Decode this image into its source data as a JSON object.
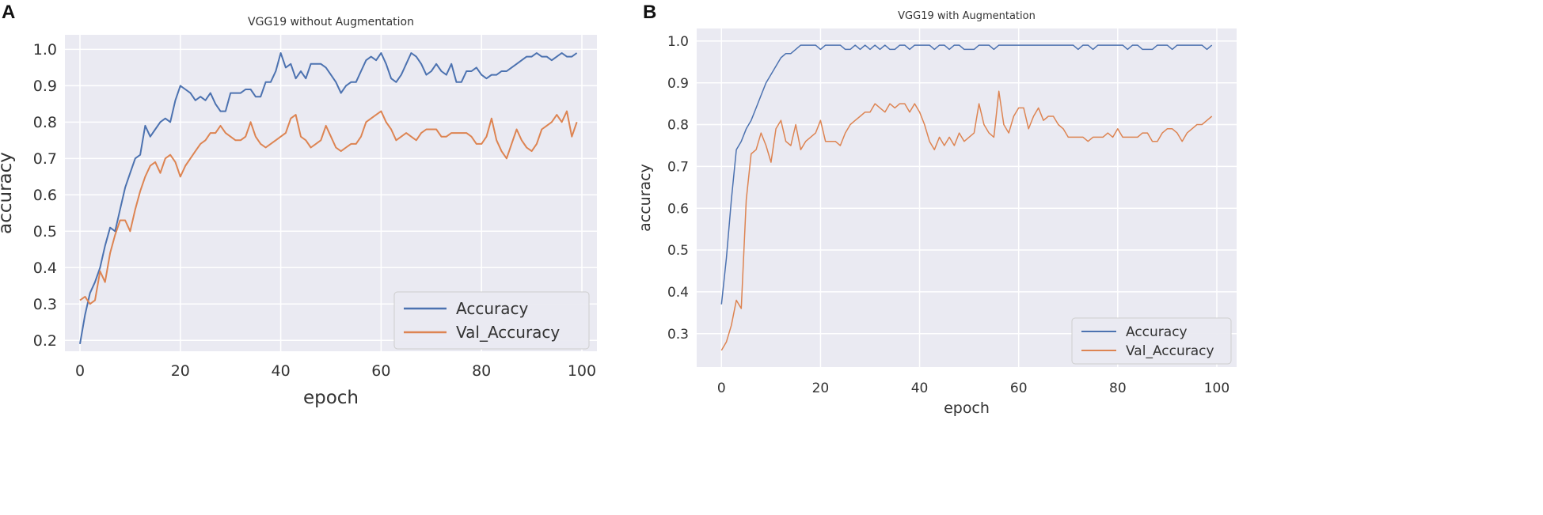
{
  "panels": {
    "a": {
      "letter": "A"
    },
    "b": {
      "letter": "B"
    }
  },
  "colors": {
    "accuracy": "#4c72b0",
    "val_accuracy": "#dd8452",
    "plot_bg": "#eaeaf2",
    "grid": "#ffffff"
  },
  "chart_data": [
    {
      "type": "line",
      "title": "VGG19 without Augmentation",
      "xlabel": "epoch",
      "ylabel": "accuracy",
      "xlim": [
        -3,
        103
      ],
      "ylim": [
        0.17,
        1.04
      ],
      "xticks": [
        0,
        20,
        40,
        60,
        80,
        100
      ],
      "yticks": [
        0.2,
        0.3,
        0.4,
        0.5,
        0.6,
        0.7,
        0.8,
        0.9,
        1.0
      ],
      "ytick_labels": [
        "0.2",
        "0.3",
        "0.4",
        "0.5",
        "0.6",
        "0.7",
        "0.8",
        "0.9",
        "1.0"
      ],
      "legend": "lower-right",
      "series": [
        {
          "name": "Accuracy",
          "values": [
            0.19,
            0.27,
            0.33,
            0.36,
            0.4,
            0.46,
            0.51,
            0.5,
            0.56,
            0.62,
            0.66,
            0.7,
            0.71,
            0.79,
            0.76,
            0.78,
            0.8,
            0.81,
            0.8,
            0.86,
            0.9,
            0.89,
            0.88,
            0.86,
            0.87,
            0.86,
            0.88,
            0.85,
            0.83,
            0.83,
            0.88,
            0.88,
            0.88,
            0.89,
            0.89,
            0.87,
            0.87,
            0.91,
            0.91,
            0.94,
            0.99,
            0.95,
            0.96,
            0.92,
            0.94,
            0.92,
            0.96,
            0.96,
            0.96,
            0.95,
            0.93,
            0.91,
            0.88,
            0.9,
            0.91,
            0.91,
            0.94,
            0.97,
            0.98,
            0.97,
            0.99,
            0.96,
            0.92,
            0.91,
            0.93,
            0.96,
            0.99,
            0.98,
            0.96,
            0.93,
            0.94,
            0.96,
            0.94,
            0.93,
            0.96,
            0.91,
            0.91,
            0.94,
            0.94,
            0.95,
            0.93,
            0.92,
            0.93,
            0.93,
            0.94,
            0.94,
            0.95,
            0.96,
            0.97,
            0.98,
            0.98,
            0.99,
            0.98,
            0.98,
            0.97,
            0.98,
            0.99,
            0.98,
            0.98,
            0.99
          ]
        },
        {
          "name": "Val_Accuracy",
          "values": [
            0.31,
            0.32,
            0.3,
            0.31,
            0.39,
            0.36,
            0.44,
            0.49,
            0.53,
            0.53,
            0.5,
            0.56,
            0.61,
            0.65,
            0.68,
            0.69,
            0.66,
            0.7,
            0.71,
            0.69,
            0.65,
            0.68,
            0.7,
            0.72,
            0.74,
            0.75,
            0.77,
            0.77,
            0.79,
            0.77,
            0.76,
            0.75,
            0.75,
            0.76,
            0.8,
            0.76,
            0.74,
            0.73,
            0.74,
            0.75,
            0.76,
            0.77,
            0.81,
            0.82,
            0.76,
            0.75,
            0.73,
            0.74,
            0.75,
            0.79,
            0.76,
            0.73,
            0.72,
            0.73,
            0.74,
            0.74,
            0.76,
            0.8,
            0.81,
            0.82,
            0.83,
            0.8,
            0.78,
            0.75,
            0.76,
            0.77,
            0.76,
            0.75,
            0.77,
            0.78,
            0.78,
            0.78,
            0.76,
            0.76,
            0.77,
            0.77,
            0.77,
            0.77,
            0.76,
            0.74,
            0.74,
            0.76,
            0.81,
            0.75,
            0.72,
            0.7,
            0.74,
            0.78,
            0.75,
            0.73,
            0.72,
            0.74,
            0.78,
            0.79,
            0.8,
            0.82,
            0.8,
            0.83,
            0.76,
            0.8
          ]
        }
      ]
    },
    {
      "type": "line",
      "title": "VGG19 with Augmentation",
      "xlabel": "epoch",
      "ylabel": "accuracy",
      "xlim": [
        -5,
        104
      ],
      "ylim": [
        0.22,
        1.03
      ],
      "xticks": [
        0,
        20,
        40,
        60,
        80,
        100
      ],
      "yticks": [
        0.3,
        0.4,
        0.5,
        0.6,
        0.7,
        0.8,
        0.9,
        1.0
      ],
      "ytick_labels": [
        "0.3",
        "0.4",
        "0.5",
        "0.6",
        "0.7",
        "0.8",
        "0.9",
        "1.0"
      ],
      "legend": "lower-right",
      "series": [
        {
          "name": "Accuracy",
          "values": [
            0.37,
            0.48,
            0.62,
            0.74,
            0.76,
            0.79,
            0.81,
            0.84,
            0.87,
            0.9,
            0.92,
            0.94,
            0.96,
            0.97,
            0.97,
            0.98,
            0.99,
            0.99,
            0.99,
            0.99,
            0.98,
            0.99,
            0.99,
            0.99,
            0.99,
            0.98,
            0.98,
            0.99,
            0.98,
            0.99,
            0.98,
            0.99,
            0.98,
            0.99,
            0.98,
            0.98,
            0.99,
            0.99,
            0.98,
            0.99,
            0.99,
            0.99,
            0.99,
            0.98,
            0.99,
            0.99,
            0.98,
            0.99,
            0.99,
            0.98,
            0.98,
            0.98,
            0.99,
            0.99,
            0.99,
            0.98,
            0.99,
            0.99,
            0.99,
            0.99,
            0.99,
            0.99,
            0.99,
            0.99,
            0.99,
            0.99,
            0.99,
            0.99,
            0.99,
            0.99,
            0.99,
            0.99,
            0.98,
            0.99,
            0.99,
            0.98,
            0.99,
            0.99,
            0.99,
            0.99,
            0.99,
            0.99,
            0.98,
            0.99,
            0.99,
            0.98,
            0.98,
            0.98,
            0.99,
            0.99,
            0.99,
            0.98,
            0.99,
            0.99,
            0.99,
            0.99,
            0.99,
            0.99,
            0.98,
            0.99
          ]
        },
        {
          "name": "Val_Accuracy",
          "values": [
            0.26,
            0.28,
            0.32,
            0.38,
            0.36,
            0.62,
            0.73,
            0.74,
            0.78,
            0.75,
            0.71,
            0.79,
            0.81,
            0.76,
            0.75,
            0.8,
            0.74,
            0.76,
            0.77,
            0.78,
            0.81,
            0.76,
            0.76,
            0.76,
            0.75,
            0.78,
            0.8,
            0.81,
            0.82,
            0.83,
            0.83,
            0.85,
            0.84,
            0.83,
            0.85,
            0.84,
            0.85,
            0.85,
            0.83,
            0.85,
            0.83,
            0.8,
            0.76,
            0.74,
            0.77,
            0.75,
            0.77,
            0.75,
            0.78,
            0.76,
            0.77,
            0.78,
            0.85,
            0.8,
            0.78,
            0.77,
            0.88,
            0.8,
            0.78,
            0.82,
            0.84,
            0.84,
            0.79,
            0.82,
            0.84,
            0.81,
            0.82,
            0.82,
            0.8,
            0.79,
            0.77,
            0.77,
            0.77,
            0.77,
            0.76,
            0.77,
            0.77,
            0.77,
            0.78,
            0.77,
            0.79,
            0.77,
            0.77,
            0.77,
            0.77,
            0.78,
            0.78,
            0.76,
            0.76,
            0.78,
            0.79,
            0.79,
            0.78,
            0.76,
            0.78,
            0.79,
            0.8,
            0.8,
            0.81,
            0.82
          ]
        }
      ]
    }
  ]
}
